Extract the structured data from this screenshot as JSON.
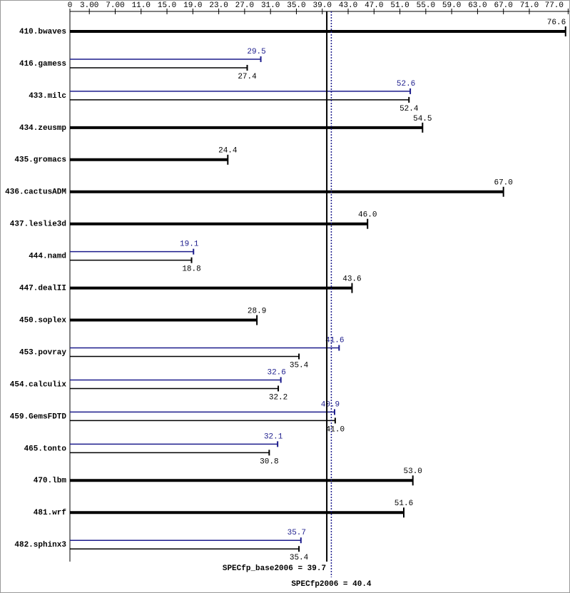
{
  "chart_data": {
    "type": "bar",
    "categories": [
      "410.bwaves",
      "416.gamess",
      "433.milc",
      "434.zeusmp",
      "435.gromacs",
      "436.cactusADM",
      "437.leslie3d",
      "444.namd",
      "447.dealII",
      "450.soplex",
      "453.povray",
      "454.calculix",
      "459.GemsFDTD",
      "465.tonto",
      "470.lbm",
      "481.wrf",
      "482.sphinx3"
    ],
    "series": [
      {
        "color": "#000000",
        "values": [
          76.6,
          27.4,
          52.4,
          54.5,
          24.4,
          67.0,
          46.0,
          18.8,
          43.6,
          28.9,
          35.4,
          32.2,
          41.0,
          30.8,
          53.0,
          51.6,
          35.4
        ],
        "value_labels": [
          "76.6",
          "27.4",
          "52.4",
          "54.5",
          "24.4",
          "67.0",
          "46.0",
          "18.8",
          "43.6",
          "28.9",
          "35.4",
          "32.2",
          "41.0",
          "30.8",
          "53.0",
          "51.6",
          "35.4"
        ]
      },
      {
        "color": "#1c1c8c",
        "values": [
          null,
          29.5,
          52.6,
          null,
          null,
          null,
          null,
          19.1,
          null,
          null,
          41.6,
          32.6,
          40.9,
          32.1,
          null,
          null,
          35.7
        ],
        "value_labels": [
          null,
          "29.5",
          "52.6",
          null,
          null,
          null,
          null,
          "19.1",
          null,
          null,
          "41.6",
          "32.6",
          "40.9",
          "32.1",
          null,
          null,
          "35.7"
        ]
      }
    ],
    "xlim": [
      0,
      77.3
    ],
    "xticks": [
      0,
      {
        "value": 3,
        "label": "3.00"
      },
      {
        "value": 7,
        "label": "7.00"
      },
      {
        "value": 11,
        "label": "11.0"
      },
      {
        "value": 15,
        "label": "15.0"
      },
      {
        "value": 19,
        "label": "19.0"
      },
      {
        "value": 23,
        "label": "23.0"
      },
      {
        "value": 27,
        "label": "27.0"
      },
      {
        "value": 31,
        "label": "31.0"
      },
      {
        "value": 35,
        "label": "35.0"
      },
      {
        "value": 39,
        "label": "39.0"
      },
      {
        "value": 43,
        "label": "43.0"
      },
      {
        "value": 47,
        "label": "47.0"
      },
      {
        "value": 51,
        "label": "51.0"
      },
      {
        "value": 55,
        "label": "55.0"
      },
      {
        "value": 59,
        "label": "59.0"
      },
      {
        "value": 63,
        "label": "63.0"
      },
      {
        "value": 67,
        "label": "67.0"
      },
      {
        "value": 71,
        "label": "71.0"
      },
      {
        "value": 77,
        "label": "77.0"
      }
    ],
    "reference_lines": [
      {
        "value": 39.7,
        "label": "SPECfp_base2006 = 39.7",
        "color": "#000000"
      },
      {
        "value": 40.4,
        "label": "SPECfp2006 = 40.4",
        "color": "#1c1c8c"
      }
    ]
  }
}
